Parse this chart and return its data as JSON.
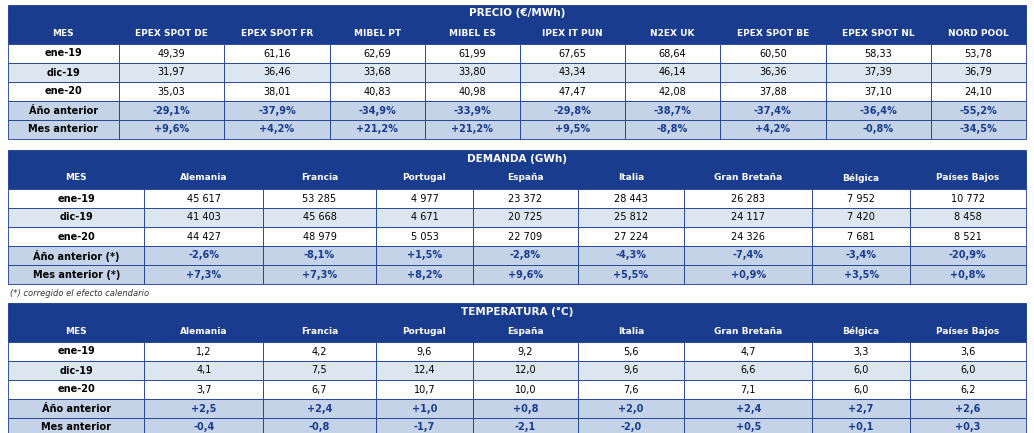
{
  "precio_title": "PRECIO (€/MWh)",
  "precio_headers": [
    "MES",
    "EPEX SPOT DE",
    "EPEX SPOT FR",
    "MIBEL PT",
    "MIBEL ES",
    "IPEX IT PUN",
    "N2EX UK",
    "EPEX SPOT BE",
    "EPEX SPOT NL",
    "NORD POOL"
  ],
  "precio_rows": [
    [
      "ene-19",
      "49,39",
      "61,16",
      "62,69",
      "61,99",
      "67,65",
      "68,64",
      "60,50",
      "58,33",
      "53,78"
    ],
    [
      "dic-19",
      "31,97",
      "36,46",
      "33,68",
      "33,80",
      "43,34",
      "46,14",
      "36,36",
      "37,39",
      "36,79"
    ],
    [
      "ene-20",
      "35,03",
      "38,01",
      "40,83",
      "40,98",
      "47,47",
      "42,08",
      "37,88",
      "37,10",
      "24,10"
    ],
    [
      "Áño anterior",
      "-29,1%",
      "-37,9%",
      "-34,9%",
      "-33,9%",
      "-29,8%",
      "-38,7%",
      "-37,4%",
      "-36,4%",
      "-55,2%"
    ],
    [
      "Mes anterior",
      "+9,6%",
      "+4,2%",
      "+21,2%",
      "+21,2%",
      "+9,5%",
      "-8,8%",
      "+4,2%",
      "-0,8%",
      "-34,5%"
    ]
  ],
  "precio_change_rows": [
    3,
    4
  ],
  "demanda_title": "DEMANDA (GWh)",
  "demanda_headers": [
    "MES",
    "Alemania",
    "Francia",
    "Portugal",
    "España",
    "Italia",
    "Gran Bretaña",
    "Bélgica",
    "Países Bajos"
  ],
  "demanda_rows": [
    [
      "ene-19",
      "45 617",
      "53 285",
      "4 977",
      "23 372",
      "28 443",
      "26 283",
      "7 952",
      "10 772"
    ],
    [
      "dic-19",
      "41 403",
      "45 668",
      "4 671",
      "20 725",
      "25 812",
      "24 117",
      "7 420",
      "8 458"
    ],
    [
      "ene-20",
      "44 427",
      "48 979",
      "5 053",
      "22 709",
      "27 224",
      "24 326",
      "7 681",
      "8 521"
    ],
    [
      "Áño anterior (*)",
      "-2,6%",
      "-8,1%",
      "+1,5%",
      "-2,8%",
      "-4,3%",
      "-7,4%",
      "-3,4%",
      "-20,9%"
    ],
    [
      "Mes anterior (*)",
      "+7,3%",
      "+7,3%",
      "+8,2%",
      "+9,6%",
      "+5,5%",
      "+0,9%",
      "+3,5%",
      "+0,8%"
    ]
  ],
  "demanda_change_rows": [
    3,
    4
  ],
  "demanda_footnote": "(*) corregido el efecto calendario",
  "temp_title": "TEMPERATURA (°C)",
  "temp_headers": [
    "MES",
    "Alemania",
    "Francia",
    "Portugal",
    "España",
    "Italia",
    "Gran Bretaña",
    "Bélgica",
    "Países Bajos"
  ],
  "temp_rows": [
    [
      "ene-19",
      "1,2",
      "4,2",
      "9,6",
      "9,2",
      "5,6",
      "4,7",
      "3,3",
      "3,6"
    ],
    [
      "dic-19",
      "4,1",
      "7,5",
      "12,4",
      "12,0",
      "9,6",
      "6,6",
      "6,0",
      "6,0"
    ],
    [
      "ene-20",
      "3,7",
      "6,7",
      "10,7",
      "10,0",
      "7,6",
      "7,1",
      "6,0",
      "6,2"
    ],
    [
      "Áño anterior",
      "+2,5",
      "+2,4",
      "+1,0",
      "+0,8",
      "+2,0",
      "+2,4",
      "+2,7",
      "+2,6"
    ],
    [
      "Mes anterior",
      "-0,4",
      "-0,8",
      "-1,7",
      "-2,1",
      "-2,0",
      "+0,5",
      "+0,1",
      "+0,3"
    ]
  ],
  "temp_change_rows": [
    3,
    4
  ],
  "header_bg": "#1a3c8f",
  "header_fg": "#ffffff",
  "subheader_bg": "#1a3c8f",
  "subheader_fg": "#ffffff",
  "row_bg_white": "#ffffff",
  "row_bg_blue": "#dce6f1",
  "row_bg_change": "#c5d3e8",
  "row_fg_normal": "#000000",
  "row_fg_change": "#1a3c8f",
  "border_color": "#1a3c8f",
  "footnote_fg": "#333333",
  "bg_color": "#ffffff"
}
